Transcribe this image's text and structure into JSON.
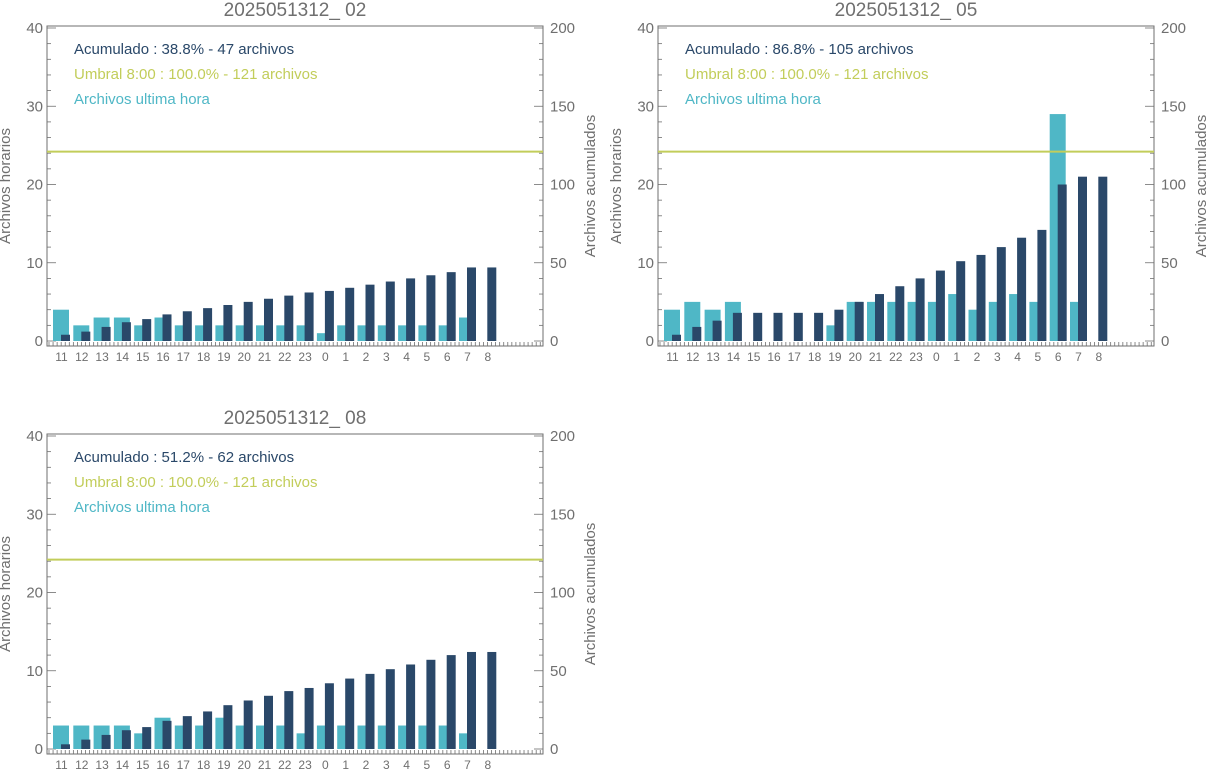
{
  "colors": {
    "hourly": "#4fb7c6",
    "cumulative": "#2a4869",
    "threshold": "#c2cd5a",
    "axis": "#6f6f6f"
  },
  "chart_data": [
    {
      "type": "bar",
      "title": "2025051312_ 02",
      "categories": [
        "11",
        "12",
        "13",
        "14",
        "15",
        "16",
        "17",
        "18",
        "19",
        "20",
        "21",
        "22",
        "23",
        "0",
        "1",
        "2",
        "3",
        "4",
        "5",
        "6",
        "7",
        "8"
      ],
      "ylabel": "Archivos horarios",
      "y2label": "Archivos acumulados",
      "ylim": [
        0,
        40
      ],
      "y2lim": [
        0,
        200
      ],
      "yticks": [
        "0",
        "10",
        "20",
        "30",
        "40"
      ],
      "y2ticks": [
        "0",
        "50",
        "100",
        "150",
        "200"
      ],
      "legend": [
        "Acumulado : 38.8% - 47 archivos",
        "Umbral 8:00 : 100.0% - 121 archivos",
        "Archivos ultima hora"
      ],
      "threshold": 121,
      "series": [
        {
          "name": "Archivos ultima hora",
          "axis": "left",
          "values": [
            4,
            2,
            3,
            3,
            2,
            3,
            2,
            2,
            2,
            2,
            2,
            2,
            2,
            1,
            2,
            2,
            2,
            2,
            2,
            2,
            3,
            0
          ]
        },
        {
          "name": "Acumulado",
          "axis": "right",
          "values": [
            4,
            6,
            9,
            12,
            14,
            17,
            19,
            21,
            23,
            25,
            27,
            29,
            31,
            32,
            34,
            36,
            38,
            40,
            42,
            44,
            47,
            47
          ]
        }
      ]
    },
    {
      "type": "bar",
      "title": "2025051312_ 05",
      "categories": [
        "11",
        "12",
        "13",
        "14",
        "15",
        "16",
        "17",
        "18",
        "19",
        "20",
        "21",
        "22",
        "23",
        "0",
        "1",
        "2",
        "3",
        "4",
        "5",
        "6",
        "7",
        "8"
      ],
      "ylabel": "Archivos horarios",
      "y2label": "Archivos acumulados",
      "ylim": [
        0,
        40
      ],
      "y2lim": [
        0,
        200
      ],
      "yticks": [
        "0",
        "10",
        "20",
        "30",
        "40"
      ],
      "y2ticks": [
        "0",
        "50",
        "100",
        "150",
        "200"
      ],
      "legend": [
        "Acumulado : 86.8% - 105 archivos",
        "Umbral 8:00 : 100.0% - 121 archivos",
        "Archivos ultima hora"
      ],
      "threshold": 121,
      "series": [
        {
          "name": "Archivos ultima hora",
          "axis": "left",
          "values": [
            4,
            5,
            4,
            5,
            0,
            0,
            0,
            0,
            2,
            5,
            5,
            5,
            5,
            5,
            6,
            4,
            5,
            6,
            5,
            29,
            5,
            0
          ]
        },
        {
          "name": "Acumulado",
          "axis": "right",
          "values": [
            4,
            9,
            13,
            18,
            18,
            18,
            18,
            18,
            20,
            25,
            30,
            35,
            40,
            45,
            51,
            55,
            60,
            66,
            71,
            100,
            105,
            105
          ]
        }
      ]
    },
    {
      "type": "bar",
      "title": "2025051312_ 08",
      "categories": [
        "11",
        "12",
        "13",
        "14",
        "15",
        "16",
        "17",
        "18",
        "19",
        "20",
        "21",
        "22",
        "23",
        "0",
        "1",
        "2",
        "3",
        "4",
        "5",
        "6",
        "7",
        "8"
      ],
      "ylabel": "Archivos horarios",
      "y2label": "Archivos acumulados",
      "ylim": [
        0,
        40
      ],
      "y2lim": [
        0,
        200
      ],
      "yticks": [
        "0",
        "10",
        "20",
        "30",
        "40"
      ],
      "y2ticks": [
        "0",
        "50",
        "100",
        "150",
        "200"
      ],
      "legend": [
        "Acumulado : 51.2% - 62 archivos",
        "Umbral 8:00 : 100.0% - 121 archivos",
        "Archivos ultima hora"
      ],
      "threshold": 121,
      "series": [
        {
          "name": "Archivos ultima hora",
          "axis": "left",
          "values": [
            3,
            3,
            3,
            3,
            2,
            4,
            3,
            3,
            4,
            3,
            3,
            3,
            2,
            3,
            3,
            3,
            3,
            3,
            3,
            3,
            2,
            0
          ]
        },
        {
          "name": "Acumulado",
          "axis": "right",
          "values": [
            3,
            6,
            9,
            12,
            14,
            18,
            21,
            24,
            28,
            31,
            34,
            37,
            39,
            42,
            45,
            48,
            51,
            54,
            57,
            60,
            62,
            62
          ]
        }
      ]
    }
  ]
}
